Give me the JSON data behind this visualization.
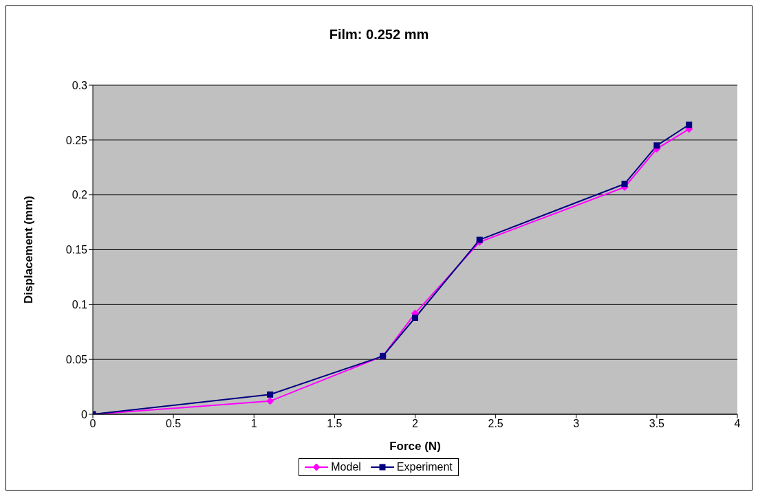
{
  "chart_data": {
    "type": "line",
    "title": "Film: 0.252 mm",
    "xlabel": "Force (N)",
    "ylabel": "Displacement (mm)",
    "x": [
      0,
      1.1,
      1.8,
      2.0,
      2.4,
      3.3,
      3.5,
      3.7
    ],
    "series": [
      {
        "name": "Model",
        "color": "#ff00ff",
        "marker": "diamond",
        "values": [
          0,
          0.012,
          0.053,
          0.092,
          0.157,
          0.207,
          0.242,
          0.26
        ]
      },
      {
        "name": "Experiment",
        "color": "#000080",
        "marker": "square",
        "values": [
          0,
          0.018,
          0.053,
          0.088,
          0.159,
          0.21,
          0.245,
          0.264
        ]
      }
    ],
    "xlim": [
      0,
      4
    ],
    "xticks": [
      0,
      0.5,
      1,
      1.5,
      2,
      2.5,
      3,
      3.5,
      4
    ],
    "ylim": [
      0,
      0.3
    ],
    "yticks": [
      0,
      0.05,
      0.1,
      0.15,
      0.2,
      0.25,
      0.3
    ],
    "grid": "y",
    "legend": "bottom"
  }
}
